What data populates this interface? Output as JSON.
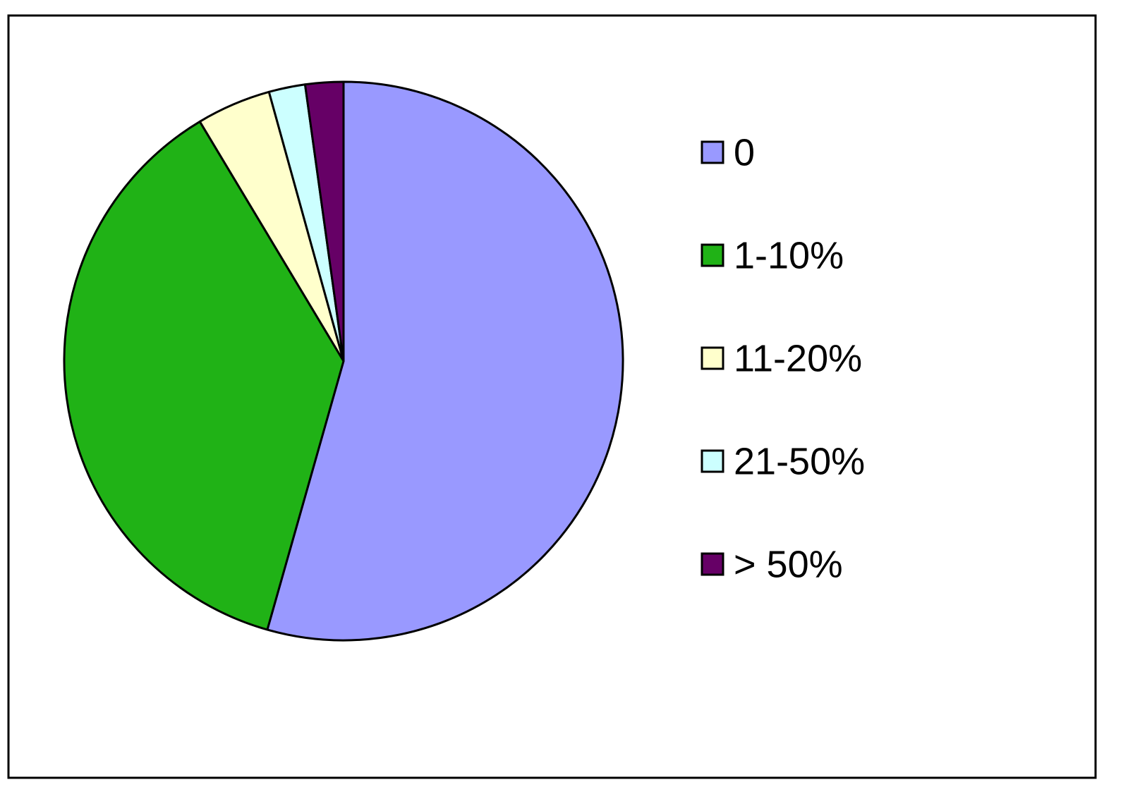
{
  "chart_data": {
    "type": "pie",
    "categories": [
      "0",
      "1-10%",
      "11-20%",
      "21-50%",
      "> 50%"
    ],
    "values": [
      54.4,
      37,
      4.3,
      2.1,
      2.2
    ],
    "colors": [
      "#9999ff",
      "#20b216",
      "#ffffcc",
      "#ccffff",
      "#660066"
    ],
    "legend": "right"
  }
}
